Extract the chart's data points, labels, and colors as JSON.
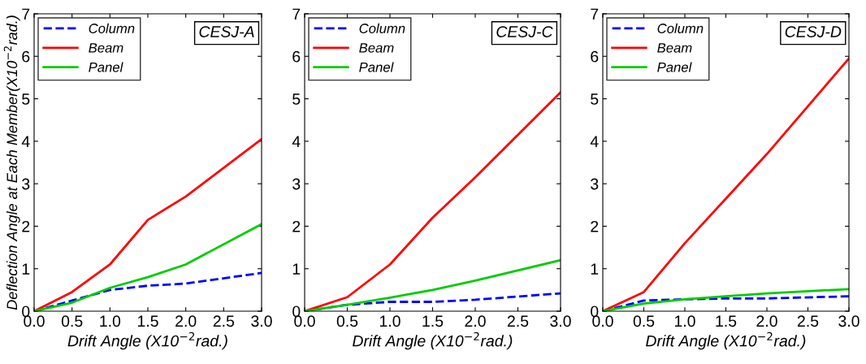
{
  "chart_data": [
    {
      "type": "line",
      "title": "CESJ-A",
      "xlabel": "Drift Angle (X10$^{−2}$rad.)",
      "ylabel": "Deflection Angle at Each Member(X10$^{−2}$rad.)",
      "x": [
        0,
        0.5,
        1.0,
        1.5,
        2.0,
        3.0
      ],
      "xlim": [
        0,
        3
      ],
      "xticks": [
        {
          "value": 0,
          "label": "0.0"
        },
        {
          "value": 0.5,
          "label": "0.5"
        },
        {
          "value": 1,
          "label": "1.0"
        },
        {
          "value": 1.5,
          "label": "1.5"
        },
        {
          "value": 2,
          "label": "2.0"
        },
        {
          "value": 2.5,
          "label": "2.5"
        },
        {
          "value": 3,
          "label": "3.0"
        }
      ],
      "ylim": [
        0,
        7
      ],
      "yticks": [
        0,
        1,
        2,
        3,
        4,
        5,
        6,
        7
      ],
      "grid": false,
      "legend": "top left",
      "marker": "none",
      "series": [
        {
          "name": "Column",
          "color": "#0000ff",
          "line_style": "dashed",
          "values": [
            0,
            0.25,
            0.5,
            0.6,
            0.65,
            0.9
          ]
        },
        {
          "name": "Beam",
          "color": "#ff0000",
          "line_style": "solid",
          "values": [
            0,
            0.45,
            1.1,
            2.15,
            2.7,
            4.05
          ]
        },
        {
          "name": "Panel",
          "color": "#00cc00",
          "line_style": "solid",
          "values": [
            0,
            0.2,
            0.55,
            0.8,
            1.1,
            2.05
          ]
        }
      ]
    },
    {
      "type": "line",
      "title": "CESJ-C",
      "xlabel": "Drift Angle (X10$^{−2}$rad.)",
      "x": [
        0,
        0.5,
        1.0,
        1.5,
        2.0,
        3.0
      ],
      "xlim": [
        0,
        3
      ],
      "xticks": [
        {
          "value": 0,
          "label": "0.0"
        },
        {
          "value": 0.5,
          "label": "0.5"
        },
        {
          "value": 1,
          "label": "1.0"
        },
        {
          "value": 1.5,
          "label": "1.5"
        },
        {
          "value": 2,
          "label": "2.0"
        },
        {
          "value": 2.5,
          "label": "2.5"
        },
        {
          "value": 3,
          "label": "3.0"
        }
      ],
      "ylim": [
        0,
        7
      ],
      "yticks": [
        0,
        1,
        2,
        3,
        4,
        5,
        6,
        7
      ],
      "grid": false,
      "legend": "top left",
      "marker": "none",
      "series": [
        {
          "name": "Column",
          "color": "#0000ff",
          "line_style": "dashed",
          "values": [
            0,
            0.15,
            0.22,
            0.22,
            0.27,
            0.42
          ]
        },
        {
          "name": "Beam",
          "color": "#ff0000",
          "line_style": "solid",
          "values": [
            0,
            0.33,
            1.1,
            2.2,
            3.15,
            5.15
          ]
        },
        {
          "name": "Panel",
          "color": "#00cc00",
          "line_style": "solid",
          "values": [
            0,
            0.15,
            0.32,
            0.5,
            0.72,
            1.2
          ]
        }
      ]
    },
    {
      "type": "line",
      "title": "CESJ-D",
      "xlabel": "Drift Angle (X10$^{−2}$rad.)",
      "x": [
        0,
        0.5,
        1.0,
        1.5,
        2.0,
        3.0
      ],
      "xlim": [
        0,
        3
      ],
      "xticks": [
        {
          "value": 0,
          "label": "0.0"
        },
        {
          "value": 0.5,
          "label": "0.5"
        },
        {
          "value": 1,
          "label": "1.0"
        },
        {
          "value": 1.5,
          "label": "1.5"
        },
        {
          "value": 2,
          "label": "2.0"
        },
        {
          "value": 2.5,
          "label": "2.5"
        },
        {
          "value": 3,
          "label": "3.0"
        }
      ],
      "ylim": [
        0,
        7
      ],
      "yticks": [
        0,
        1,
        2,
        3,
        4,
        5,
        6,
        7
      ],
      "grid": false,
      "legend": "top left",
      "marker": "none",
      "series": [
        {
          "name": "Column",
          "color": "#0000ff",
          "line_style": "dashed",
          "values": [
            0,
            0.25,
            0.28,
            0.3,
            0.3,
            0.35
          ]
        },
        {
          "name": "Beam",
          "color": "#ff0000",
          "line_style": "solid",
          "values": [
            0,
            0.45,
            1.6,
            2.65,
            3.7,
            5.95
          ]
        },
        {
          "name": "Panel",
          "color": "#00cc00",
          "line_style": "solid",
          "values": [
            0,
            0.18,
            0.28,
            0.35,
            0.42,
            0.52
          ]
        }
      ]
    }
  ]
}
